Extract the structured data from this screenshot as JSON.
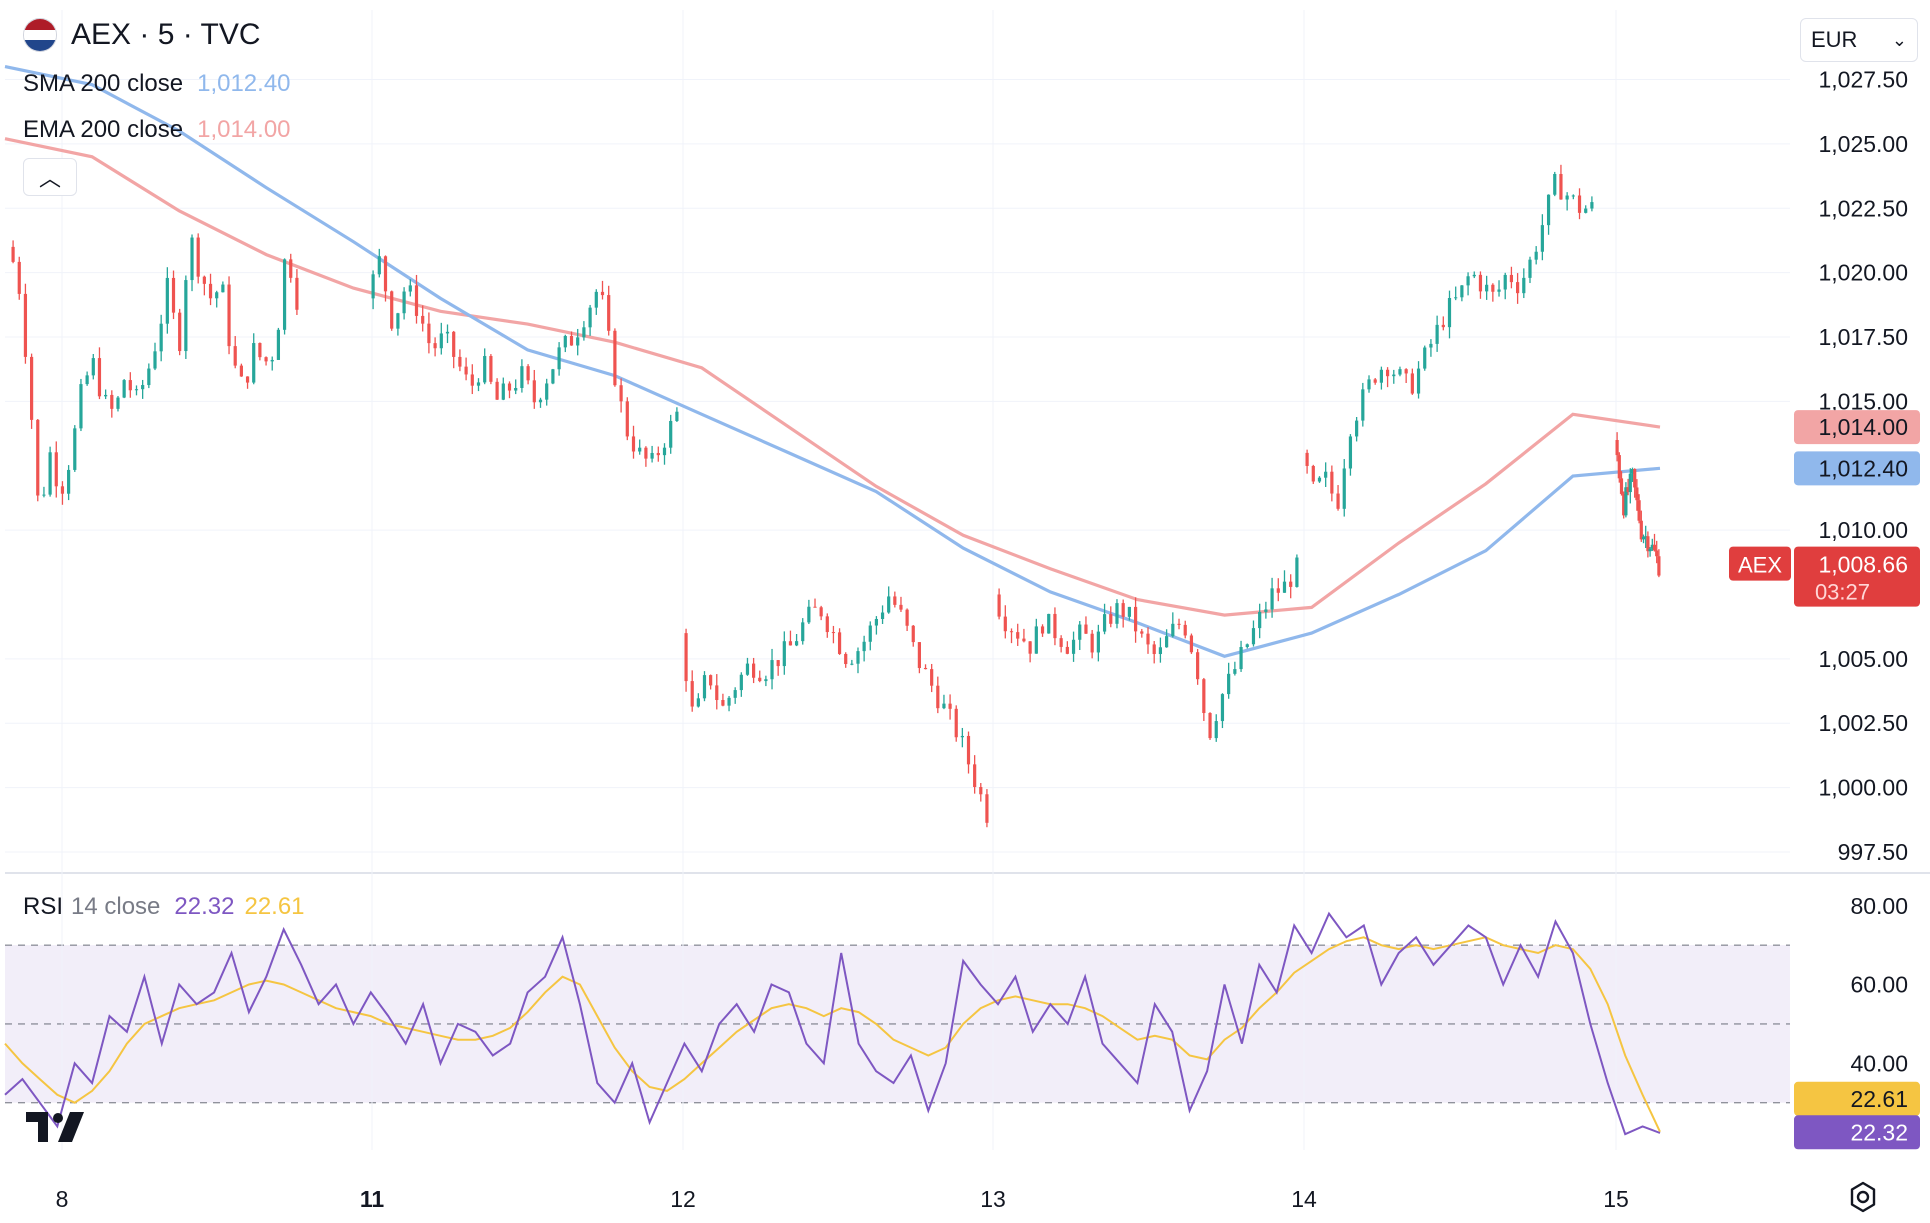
{
  "header": {
    "symbol": "AEX · 5 · TVC",
    "sma": {
      "name": "SMA 200 close",
      "value": "1,012.40",
      "color": "#90b8ec"
    },
    "ema": {
      "name": "EMA 200 close",
      "value": "1,014.00",
      "color": "#f2a5a5"
    },
    "collapse_glyph": "︿",
    "flag_icon": "netherlands-flag-icon"
  },
  "currency": {
    "label": "EUR",
    "chevron": "⌄"
  },
  "rsi_legend": {
    "name": "RSI",
    "params": "14 close",
    "rsi_value": "22.32",
    "ma_value": "22.61",
    "rsi_color": "#7e57c2",
    "ma_color": "#f5c542"
  },
  "chart_data": {
    "type": "candlestick",
    "price_axis": {
      "ticks": [
        "1,027.50",
        "1,025.00",
        "1,022.50",
        "1,020.00",
        "1,017.50",
        "1,015.00",
        "1,010.00",
        "1,005.00",
        "1,002.50",
        "1,000.00",
        "997.50"
      ],
      "tick_values": [
        1027.5,
        1025.0,
        1022.5,
        1020.0,
        1017.5,
        1015.0,
        1010.0,
        1005.0,
        1002.5,
        1000.0,
        997.5
      ],
      "range": [
        996.8,
        1030.2
      ]
    },
    "x_axis": {
      "labels": [
        "8",
        "11",
        "12",
        "13",
        "14",
        "15"
      ],
      "bold": [
        false,
        true,
        false,
        false,
        false,
        false
      ]
    },
    "price_labels": {
      "ema": {
        "text": "1,014.00",
        "value": 1014.0,
        "color": "#f2a5a5"
      },
      "sma": {
        "text": "1,012.40",
        "value": 1012.4,
        "color": "#90b8ec"
      },
      "last": {
        "tag": "AEX",
        "text": "1,008.66",
        "countdown": "03:27",
        "value": 1008.66,
        "color": "#e03e3e"
      }
    },
    "sessions": [
      {
        "day": "8",
        "open": 1021.0,
        "path": [
          1021.0,
          1020.0,
          1016.0,
          1010.5,
          1013.0,
          1011.5,
          1013.0,
          1015.5,
          1016.5,
          1015.0,
          1014.5,
          1016.0,
          1015.0,
          1016.0,
          1017.5,
          1019.5,
          1017.0,
          1021.5,
          1020.0,
          1019.0,
          1019.5,
          1016.5,
          1015.5,
          1017.0,
          1016.5,
          1017.0,
          1021.0,
          1019.0
        ]
      },
      {
        "day": "11",
        "open": 1019.0,
        "path": [
          1019.0,
          1020.5,
          1018.0,
          1019.5,
          1018.5,
          1017.0,
          1017.5,
          1016.5,
          1015.5,
          1016.5,
          1015.0,
          1015.5,
          1016.0,
          1015.0,
          1016.0,
          1017.0,
          1017.5,
          1018.5,
          1019.5,
          1016.5,
          1014.0,
          1013.0,
          1012.5,
          1013.5,
          1014.5
        ]
      },
      {
        "day": "12",
        "open": 1006.0,
        "path": [
          1006.0,
          1002.5,
          1004.5,
          1003.0,
          1004.0,
          1004.8,
          1004.5,
          1005.0,
          1005.5,
          1006.5,
          1007.0,
          1006.0,
          1005.0,
          1005.5,
          1006.5,
          1007.5,
          1006.5,
          1005.0,
          1004.0,
          1003.0,
          1002.0,
          1000.5,
          999.0
        ]
      },
      {
        "day": "13",
        "open": 1007.5,
        "path": [
          1007.5,
          1006.5,
          1006.0,
          1005.5,
          1006.5,
          1006.0,
          1005.5,
          1006.0,
          1005.5,
          1006.5,
          1007.0,
          1006.5,
          1005.5,
          1005.0,
          1006.0,
          1006.5,
          1005.0,
          1002.0,
          1003.5,
          1004.5,
          1005.5,
          1006.5,
          1007.5,
          1007.8,
          1008.5
        ]
      },
      {
        "day": "14",
        "open": 1013.0,
        "path": [
          1013.0,
          1011.5,
          1012.0,
          1011.0,
          1014.0,
          1015.0,
          1016.0,
          1016.5,
          1016.0,
          1015.5,
          1016.5,
          1017.5,
          1018.5,
          1019.0,
          1020.0,
          1019.5,
          1019.0,
          1020.0,
          1019.5,
          1020.5,
          1022.0,
          1023.5,
          1023.0,
          1022.5,
          1022.5
        ]
      },
      {
        "day": "15",
        "open": 1013.5,
        "path": [
          1013.5,
          1011.0,
          1012.0,
          1010.0,
          1009.5,
          1008.66
        ]
      }
    ],
    "sma_series": {
      "name": "SMA 200 close",
      "y": [
        1028.0,
        1027.3,
        1025.5,
        1023.3,
        1021.2,
        1019.0,
        1017.0,
        1016.0,
        1014.5,
        1013.0,
        1011.5,
        1009.3,
        1007.6,
        1006.4,
        1005.1,
        1006.0,
        1007.5,
        1009.2,
        1012.1,
        1012.4
      ]
    },
    "ema_series": {
      "name": "EMA 200 close",
      "y": [
        1025.2,
        1024.5,
        1022.4,
        1020.7,
        1019.4,
        1018.5,
        1018.0,
        1017.3,
        1016.3,
        1014.0,
        1011.7,
        1009.8,
        1008.5,
        1007.3,
        1006.7,
        1007.0,
        1009.5,
        1011.8,
        1014.5,
        1014.0
      ]
    },
    "rsi": {
      "axis_ticks": [
        "80.00",
        "60.00",
        "40.00"
      ],
      "tick_values": [
        80,
        60,
        40
      ],
      "range": [
        18,
        84
      ],
      "upper_band": 70,
      "middle_band": 50,
      "lower_band": 30,
      "rsi_points": [
        32,
        36,
        30,
        24,
        40,
        35,
        52,
        48,
        62,
        45,
        60,
        55,
        58,
        68,
        53,
        62,
        74,
        65,
        55,
        60,
        50,
        58,
        52,
        45,
        55,
        40,
        50,
        48,
        42,
        45,
        58,
        62,
        72,
        55,
        35,
        30,
        40,
        25,
        35,
        45,
        38,
        50,
        55,
        48,
        60,
        58,
        45,
        40,
        68,
        45,
        38,
        35,
        42,
        28,
        40,
        66,
        60,
        55,
        62,
        48,
        55,
        50,
        62,
        45,
        40,
        35,
        55,
        48,
        28,
        38,
        60,
        45,
        65,
        58,
        75,
        68,
        78,
        72,
        75,
        60,
        68,
        72,
        65,
        70,
        75,
        72,
        60,
        70,
        62,
        76,
        68,
        50,
        35,
        22,
        24,
        22.32
      ],
      "ma_points": [
        45,
        40,
        36,
        32,
        30,
        33,
        38,
        45,
        50,
        52,
        54,
        55,
        56,
        58,
        60,
        61,
        60,
        58,
        56,
        54,
        53,
        52,
        50,
        49,
        48,
        47,
        46,
        46,
        47,
        49,
        53,
        58,
        62,
        60,
        52,
        44,
        38,
        34,
        33,
        36,
        40,
        44,
        48,
        51,
        54,
        55,
        54,
        52,
        54,
        53,
        50,
        46,
        44,
        42,
        44,
        50,
        54,
        56,
        57,
        56,
        55,
        55,
        54,
        52,
        49,
        46,
        47,
        46,
        42,
        41,
        46,
        49,
        54,
        58,
        63,
        66,
        69,
        71,
        72,
        70,
        69,
        70,
        69,
        70,
        71,
        72,
        70,
        69,
        68,
        70,
        69,
        64,
        55,
        42,
        32,
        22.61
      ]
    }
  }
}
